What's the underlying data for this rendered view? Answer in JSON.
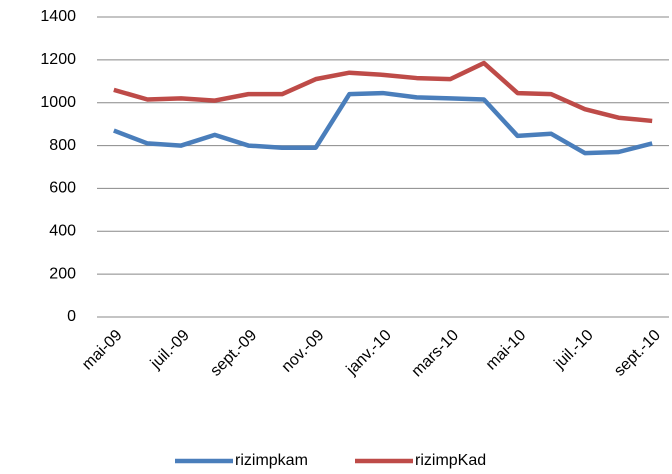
{
  "chart_data": {
    "type": "line",
    "categories": [
      "mai-09",
      null,
      "juil.-09",
      null,
      "sept.-09",
      null,
      "nov.-09",
      null,
      "janv.-10",
      null,
      "mars-10",
      null,
      "mai-10",
      null,
      "juil.-10",
      null,
      "sept.-10"
    ],
    "series": [
      {
        "name": "rizimpkam",
        "color": "#4a7ebb",
        "values": [
          870,
          810,
          800,
          850,
          800,
          790,
          790,
          1040,
          1045,
          1025,
          1020,
          1015,
          845,
          855,
          765,
          770,
          810
        ]
      },
      {
        "name": "rizimpKad",
        "color": "#be4b48",
        "values": [
          1060,
          1015,
          1020,
          1010,
          1040,
          1040,
          1110,
          1140,
          1130,
          1115,
          1110,
          1185,
          1045,
          1040,
          970,
          930,
          915
        ]
      }
    ],
    "ylim": [
      0,
      1400
    ],
    "yticks": [
      0,
      200,
      400,
      600,
      800,
      1000,
      1200,
      1400
    ],
    "grid": true,
    "legend": "bottom"
  }
}
